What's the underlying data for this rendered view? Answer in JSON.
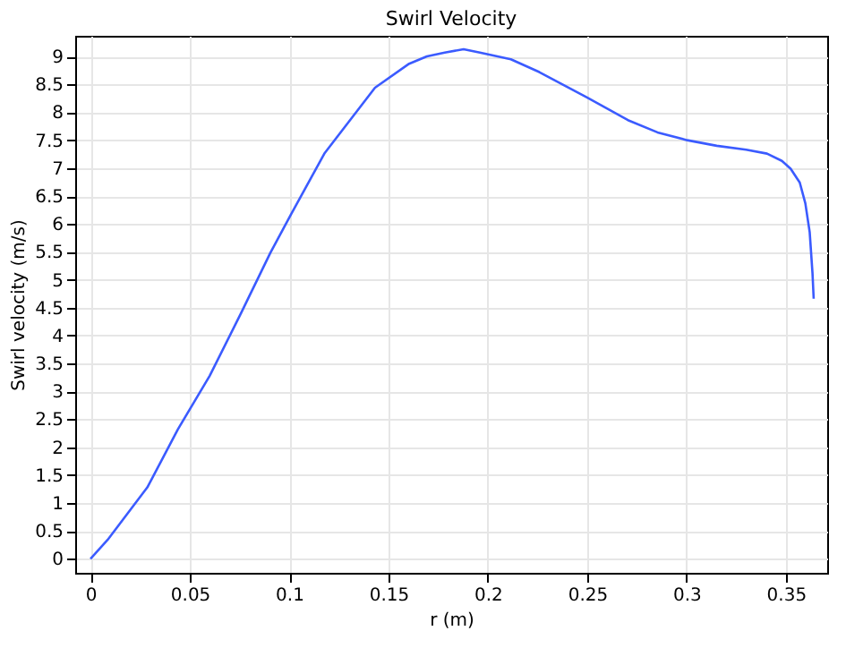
{
  "chart_data": {
    "type": "line",
    "title": "Swirl Velocity",
    "xlabel": "r (m)",
    "ylabel": "Swirl velocity (m/s)",
    "x": [
      0,
      0.0086,
      0.0286,
      0.044,
      0.06,
      0.0756,
      0.0905,
      0.1009,
      0.1179,
      0.1432,
      0.1604,
      0.1693,
      0.1783,
      0.1878,
      0.196,
      0.2116,
      0.2259,
      0.2497,
      0.2705,
      0.2854,
      0.3003,
      0.3152,
      0.33,
      0.3405,
      0.348,
      0.3524,
      0.357,
      0.3598,
      0.362,
      0.3634,
      0.364
    ],
    "series": [
      {
        "color": "#3b5bff",
        "values": [
          0,
          0.34,
          1.28,
          2.32,
          3.28,
          4.39,
          5.48,
          6.17,
          7.27,
          8.44,
          8.87,
          9.0,
          9.07,
          9.13,
          9.07,
          8.95,
          8.72,
          8.27,
          7.86,
          7.64,
          7.5,
          7.4,
          7.33,
          7.26,
          7.13,
          6.99,
          6.74,
          6.37,
          5.85,
          5.12,
          4.66
        ]
      }
    ],
    "xlim": [
      -0.0077,
      0.3708
    ],
    "ylim": [
      -0.25,
      9.37
    ],
    "xticks": [
      0,
      0.05,
      0.1,
      0.15,
      0.2,
      0.25,
      0.3,
      0.35
    ],
    "yticks": [
      0,
      0.5,
      1,
      1.5,
      2,
      2.5,
      3,
      3.5,
      4,
      4.5,
      5,
      5.5,
      6,
      6.5,
      7,
      7.5,
      8,
      8.5,
      9
    ],
    "grid": true,
    "legend": false,
    "marker": "none",
    "line_style": "solid"
  }
}
